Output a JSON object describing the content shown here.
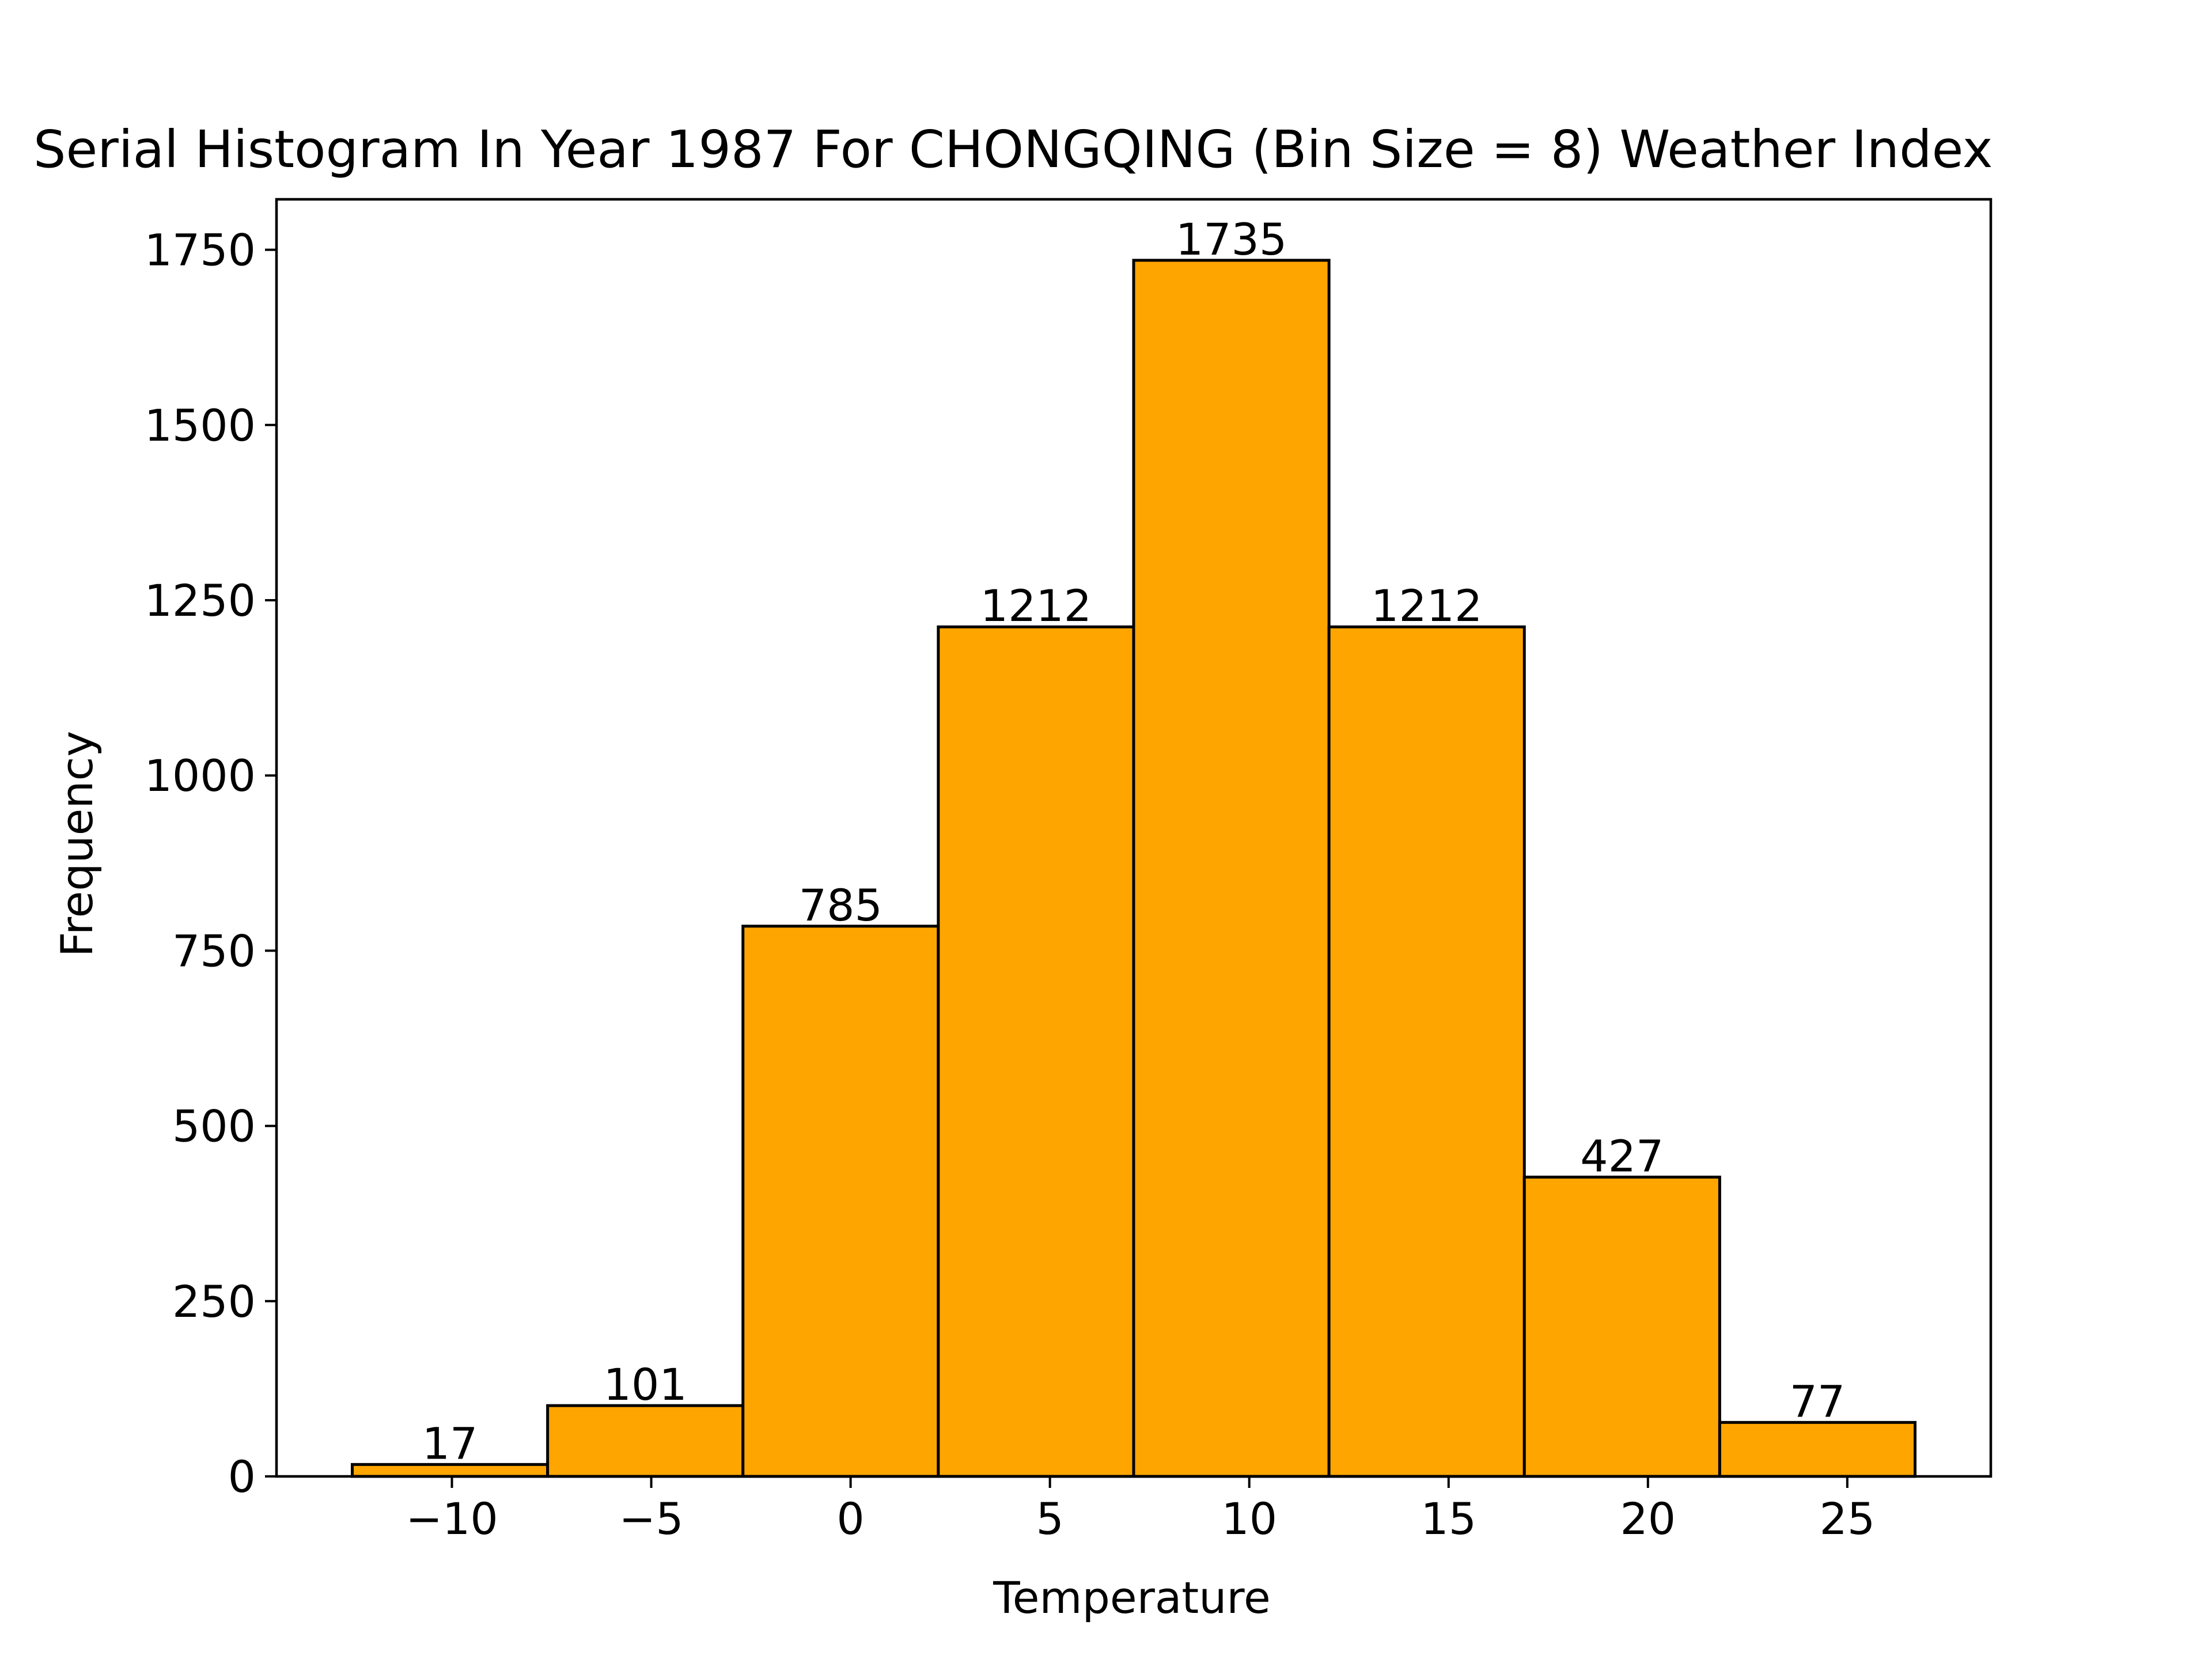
{
  "chart_data": {
    "type": "bar",
    "title": "Serial Histogram In Year 1987 For CHONGQING (Bin Size = 8) Weather Index",
    "xlabel": "Temperature",
    "ylabel": "Frequency",
    "bins": [
      {
        "x0": -12.5,
        "x1": -7.6,
        "value": 17
      },
      {
        "x0": -7.6,
        "x1": -2.7,
        "value": 101
      },
      {
        "x0": -2.7,
        "x1": 2.2,
        "value": 785
      },
      {
        "x0": 2.2,
        "x1": 7.1,
        "value": 1212
      },
      {
        "x0": 7.1,
        "x1": 12.0,
        "value": 1735
      },
      {
        "x0": 12.0,
        "x1": 16.9,
        "value": 1212
      },
      {
        "x0": 16.9,
        "x1": 21.8,
        "value": 427
      },
      {
        "x0": 21.8,
        "x1": 26.7,
        "value": 77
      }
    ],
    "xlim": [
      -14.4,
      28.6
    ],
    "ylim": [
      0,
      1822
    ],
    "xticks": [
      {
        "value": -10,
        "label": "−10"
      },
      {
        "value": -5,
        "label": "−5"
      },
      {
        "value": 0,
        "label": "0"
      },
      {
        "value": 5,
        "label": "5"
      },
      {
        "value": 10,
        "label": "10"
      },
      {
        "value": 15,
        "label": "15"
      },
      {
        "value": 20,
        "label": "20"
      },
      {
        "value": 25,
        "label": "25"
      }
    ],
    "yticks": [
      {
        "value": 0,
        "label": "0"
      },
      {
        "value": 250,
        "label": "250"
      },
      {
        "value": 500,
        "label": "500"
      },
      {
        "value": 750,
        "label": "750"
      },
      {
        "value": 1000,
        "label": "1000"
      },
      {
        "value": 1250,
        "label": "1250"
      },
      {
        "value": 1500,
        "label": "1500"
      },
      {
        "value": 1750,
        "label": "1750"
      }
    ],
    "grid": false,
    "colors": {
      "bar_fill": "#FFA500",
      "bar_edge": "#000000"
    }
  }
}
